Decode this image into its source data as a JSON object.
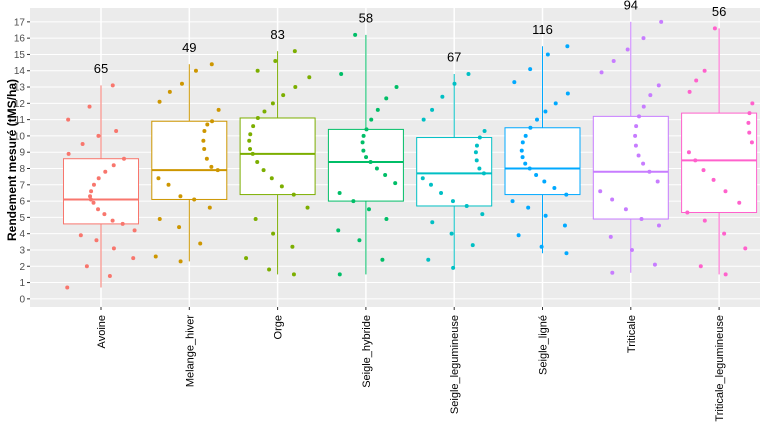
{
  "chart_data": {
    "type": "box",
    "ylabel": "Rendement mesuré (tMS/ha)",
    "categories": [
      "Avoine",
      "Melange_hiver",
      "Orge",
      "Seigle_hybride",
      "Seigle_legumineuse",
      "Seigle_ligné",
      "Triticale",
      "Triticale_legumineuse"
    ],
    "colors": [
      "#F8766D",
      "#CD9600",
      "#7CAE00",
      "#00BE67",
      "#00BFC4",
      "#00A9FF",
      "#C77CFF",
      "#FF61CC"
    ],
    "whisker_low": [
      0.7,
      2.3,
      1.5,
      1.5,
      1.9,
      2.8,
      1.6,
      1.5
    ],
    "q1": [
      4.6,
      6.1,
      6.4,
      6.0,
      5.7,
      6.4,
      4.9,
      5.3
    ],
    "median": [
      6.1,
      7.9,
      8.9,
      8.4,
      7.7,
      8.0,
      7.8,
      8.5
    ],
    "q3": [
      8.6,
      10.9,
      11.1,
      10.4,
      9.9,
      10.5,
      11.2,
      11.4
    ],
    "whisker_high": [
      13.1,
      14.4,
      15.2,
      16.2,
      13.8,
      15.5,
      17.0,
      16.6
    ],
    "counts": [
      65,
      49,
      83,
      58,
      67,
      116,
      94,
      56
    ],
    "points": [
      [
        0.7,
        1.4,
        2.0,
        2.5,
        3.1,
        3.6,
        3.9,
        4.2,
        4.6,
        4.8,
        5.2,
        5.5,
        5.9,
        6.1,
        6.3,
        6.6,
        7.0,
        7.4,
        7.8,
        8.2,
        8.6,
        8.9,
        9.5,
        10.0,
        10.3,
        11.0,
        11.8,
        13.1
      ],
      [
        2.3,
        2.6,
        3.4,
        4.4,
        4.9,
        5.6,
        6.1,
        6.3,
        7.0,
        7.4,
        7.9,
        8.1,
        8.6,
        9.2,
        9.7,
        10.3,
        10.7,
        10.9,
        11.6,
        12.1,
        12.7,
        13.2,
        14.0,
        14.4
      ],
      [
        1.5,
        1.8,
        2.5,
        3.2,
        4.0,
        4.9,
        5.6,
        6.4,
        6.9,
        7.4,
        7.9,
        8.4,
        8.9,
        9.2,
        9.7,
        10.1,
        10.6,
        11.1,
        11.5,
        12.0,
        12.5,
        13.0,
        13.6,
        14.0,
        14.6,
        15.2
      ],
      [
        1.5,
        2.4,
        3.6,
        4.2,
        4.9,
        5.5,
        6.0,
        6.5,
        7.1,
        7.6,
        8.0,
        8.4,
        8.7,
        9.1,
        9.6,
        10.0,
        10.4,
        11.0,
        11.6,
        12.3,
        13.0,
        13.8,
        16.2
      ],
      [
        1.9,
        2.4,
        3.3,
        4.0,
        4.7,
        5.2,
        5.7,
        6.0,
        6.5,
        7.0,
        7.4,
        7.7,
        8.0,
        8.5,
        9.0,
        9.4,
        9.9,
        10.3,
        11.0,
        11.6,
        12.4,
        13.2,
        13.8
      ],
      [
        2.8,
        3.2,
        3.9,
        4.5,
        5.1,
        5.6,
        6.0,
        6.4,
        6.8,
        7.2,
        7.6,
        8.0,
        8.3,
        8.7,
        9.1,
        9.6,
        10.0,
        10.5,
        11.0,
        11.5,
        12.0,
        12.6,
        13.3,
        14.1,
        15.0,
        15.5
      ],
      [
        1.6,
        2.1,
        3.0,
        3.8,
        4.5,
        4.9,
        5.5,
        6.1,
        6.6,
        7.2,
        7.8,
        8.3,
        8.8,
        9.4,
        10.0,
        10.6,
        11.2,
        11.8,
        12.5,
        13.1,
        13.9,
        14.6,
        15.3,
        16.0,
        17.0
      ],
      [
        1.5,
        2.0,
        3.1,
        4.0,
        4.8,
        5.3,
        5.9,
        6.6,
        7.3,
        7.9,
        8.5,
        9.0,
        9.6,
        10.2,
        10.8,
        11.4,
        12.0,
        12.7,
        13.4,
        14.0,
        16.6
      ]
    ],
    "ylim": [
      -0.5,
      17.85
    ],
    "yticks": [
      0,
      1,
      2,
      3,
      4,
      5,
      6,
      7,
      8,
      9,
      10,
      11,
      12,
      13,
      14,
      15,
      16,
      17
    ],
    "grid": true
  }
}
